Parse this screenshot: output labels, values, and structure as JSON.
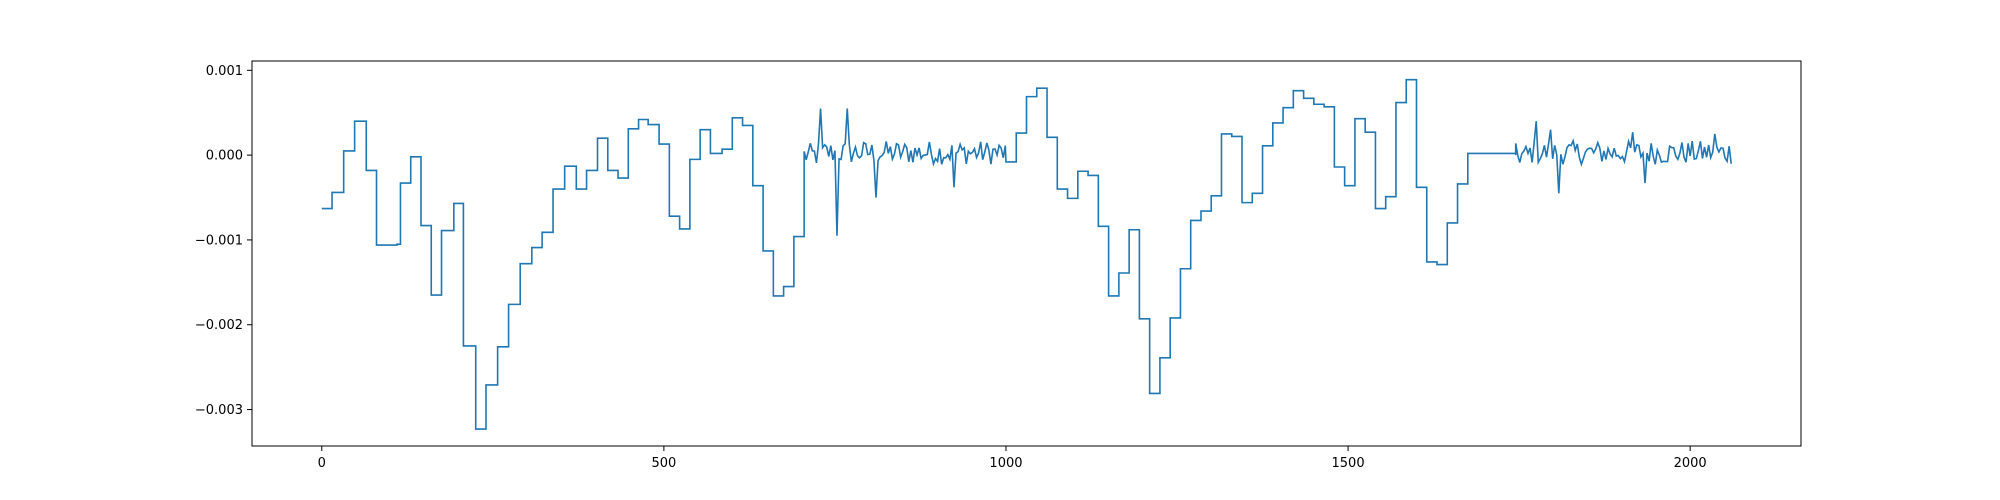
{
  "chart_data": {
    "type": "line",
    "title": "",
    "xlabel": "",
    "ylabel": "",
    "xlim": [
      -102,
      2162
    ],
    "ylim": [
      -0.00343,
      0.00111
    ],
    "x_ticks": [
      0,
      500,
      1000,
      1500,
      2000
    ],
    "x_tick_labels": [
      "0",
      "500",
      "1000",
      "1500",
      "2000"
    ],
    "y_ticks": [
      0.001,
      0.0,
      -0.001,
      -0.002,
      -0.003
    ],
    "y_tick_labels": [
      "0.001",
      "0.000",
      "−0.001",
      "−0.002",
      "−0.003"
    ],
    "grid": false,
    "legend": "none",
    "series": [
      {
        "color": "#1f77b4",
        "steps": [
          [
            0,
            -0.00063
          ],
          [
            15,
            -0.00044
          ],
          [
            32,
            5e-05
          ],
          [
            48,
            0.0004
          ],
          [
            65,
            -0.00018
          ],
          [
            80,
            -0.00106
          ],
          [
            110,
            -0.00105
          ],
          [
            115,
            -0.00033
          ],
          [
            130,
            -2e-05
          ],
          [
            145,
            -0.00083
          ],
          [
            160,
            -0.00165
          ],
          [
            175,
            -0.00089
          ],
          [
            193,
            -0.00057
          ],
          [
            207,
            -0.00225
          ],
          [
            225,
            -0.00323
          ],
          [
            240,
            -0.00271
          ],
          [
            257,
            -0.00226
          ],
          [
            273,
            -0.00176
          ],
          [
            290,
            -0.00128
          ],
          [
            307,
            -0.00109
          ],
          [
            322,
            -0.00091
          ],
          [
            338,
            -0.0004
          ],
          [
            355,
            -0.00013
          ],
          [
            372,
            -0.0004
          ],
          [
            387,
            -0.00018
          ],
          [
            403,
            0.0002
          ],
          [
            418,
            -0.00018
          ],
          [
            433,
            -0.00027
          ],
          [
            448,
            0.00031
          ],
          [
            463,
            0.00042
          ],
          [
            477,
            0.00036
          ],
          [
            493,
            0.00013
          ],
          [
            508,
            -0.00072
          ],
          [
            523,
            -0.00087
          ],
          [
            538,
            -5e-05
          ],
          [
            553,
            0.0003
          ],
          [
            568,
            2e-05
          ],
          [
            585,
            7e-05
          ],
          [
            600,
            0.00044
          ],
          [
            615,
            0.00035
          ],
          [
            630,
            -0.00036
          ],
          [
            645,
            -0.00113
          ],
          [
            660,
            -0.00166
          ],
          [
            675,
            -0.00155
          ],
          [
            690,
            -0.00096
          ],
          [
            705,
            0.0
          ]
        ],
        "noisy_segments": [
          {
            "x": [
              705,
              1000
            ],
            "peaks": [
              [
                730,
                0.00055
              ],
              [
                752,
                -0.00095
              ],
              [
                768,
                0.00055
              ],
              [
                810,
                -0.0005
              ],
              [
                925,
                -0.00038
              ]
            ]
          },
          {
            "x": [
              1745,
              2060
            ],
            "peaks": [
              [
                1775,
                0.0004
              ],
              [
                1795,
                0.0003
              ],
              [
                1808,
                -0.00045
              ],
              [
                1915,
                0.00027
              ],
              [
                1935,
                -0.00033
              ],
              [
                2035,
                0.00025
              ]
            ]
          }
        ],
        "steps_2": [
          [
            1000,
            -8e-05
          ],
          [
            1015,
            0.00026
          ],
          [
            1030,
            0.00069
          ],
          [
            1045,
            0.00079
          ],
          [
            1060,
            0.00021
          ],
          [
            1075,
            -0.0004
          ],
          [
            1090,
            -0.00051
          ],
          [
            1105,
            -0.00019
          ],
          [
            1120,
            -0.00024
          ],
          [
            1135,
            -0.00084
          ],
          [
            1150,
            -0.00166
          ],
          [
            1165,
            -0.00139
          ],
          [
            1180,
            -0.00088
          ],
          [
            1195,
            -0.00193
          ],
          [
            1210,
            -0.00281
          ],
          [
            1225,
            -0.00239
          ],
          [
            1240,
            -0.00192
          ],
          [
            1255,
            -0.00134
          ],
          [
            1270,
            -0.00077
          ],
          [
            1285,
            -0.00066
          ],
          [
            1300,
            -0.00048
          ],
          [
            1315,
            0.00025
          ],
          [
            1330,
            0.00022
          ],
          [
            1345,
            -0.00056
          ],
          [
            1360,
            -0.00045
          ],
          [
            1375,
            0.00011
          ],
          [
            1390,
            0.00038
          ],
          [
            1405,
            0.00056
          ],
          [
            1420,
            0.00076
          ],
          [
            1435,
            0.00067
          ],
          [
            1450,
            0.0006
          ],
          [
            1465,
            0.00057
          ],
          [
            1480,
            -0.00014
          ],
          [
            1495,
            -0.00036
          ],
          [
            1510,
            0.00043
          ],
          [
            1525,
            0.00027
          ],
          [
            1540,
            -0.00063
          ],
          [
            1555,
            -0.00049
          ],
          [
            1570,
            0.00062
          ],
          [
            1585,
            0.00089
          ],
          [
            1600,
            -0.00038
          ],
          [
            1615,
            -0.00126
          ],
          [
            1630,
            -0.00129
          ],
          [
            1645,
            -0.0008
          ],
          [
            1660,
            -0.00034
          ],
          [
            1675,
            2e-05
          ],
          [
            1745,
            0.0
          ]
        ]
      }
    ]
  }
}
